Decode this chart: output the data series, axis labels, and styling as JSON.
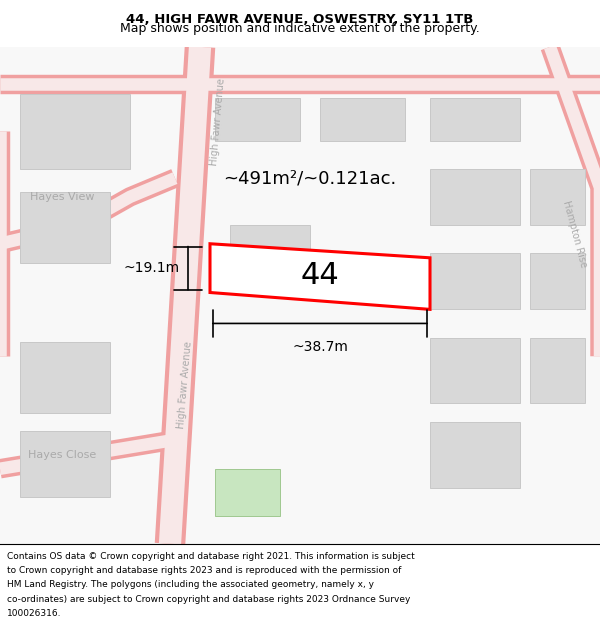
{
  "title": "44, HIGH FAWR AVENUE, OSWESTRY, SY11 1TB",
  "subtitle": "Map shows position and indicative extent of the property.",
  "footer": "Contains OS data © Crown copyright and database right 2021. This information is subject to Crown copyright and database rights 2023 and is reproduced with the permission of HM Land Registry. The polygons (including the associated geometry, namely x, y co-ordinates) are subject to Crown copyright and database rights 2023 Ordnance Survey 100026316.",
  "map_bg": "#f8f8f8",
  "road_color": "#f0a0a0",
  "road_fill": "#f8e8e8",
  "block_color": "#d8d8d8",
  "block_edge": "#c0c0c0",
  "highlight_color": "#ff0000",
  "highlight_fill": "#ffffff",
  "area_text": "~491m²/~0.121ac.",
  "number_text": "44",
  "width_label": "~38.7m",
  "height_label": "~19.1m",
  "street_label1": "High Fawr Avenue",
  "street_label2": "High Fawr Avenue",
  "street_label3": "Hampton Rise",
  "label_hayes_view": "Hayes View",
  "label_hayes_close": "Hayes Close",
  "title_fontsize": 9.5,
  "subtitle_fontsize": 9,
  "footer_fontsize": 6.5
}
